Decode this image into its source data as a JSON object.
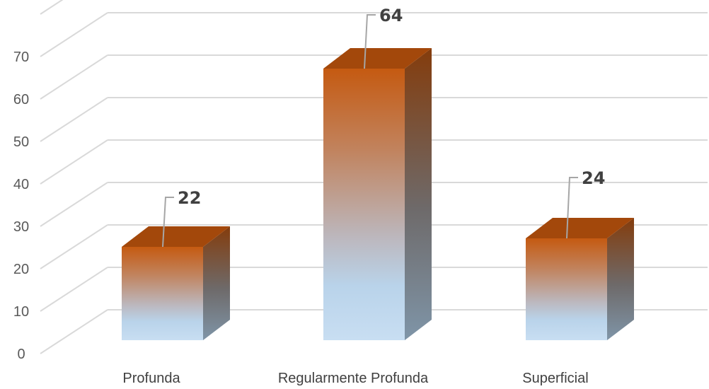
{
  "chart_data": {
    "type": "bar",
    "style": "3d-column",
    "categories": [
      "Profunda",
      "Regularmente Profunda",
      "Superficial"
    ],
    "values": [
      22,
      64,
      24
    ],
    "ylim": [
      0,
      70
    ],
    "yticks": [
      "0",
      "10",
      "20",
      "30",
      "40",
      "50",
      "60",
      "70"
    ],
    "grid": true,
    "legend": "none",
    "data_labels": [
      "22",
      "64",
      "24"
    ],
    "colors": {
      "top": "#c55a11",
      "middle": "#ba8e78",
      "bottom": "#bdd7ee",
      "side_top": "#843c0c",
      "side_bottom": "#7f95a8",
      "cap": "#a3480b",
      "grid": "#d9d9d9"
    }
  }
}
